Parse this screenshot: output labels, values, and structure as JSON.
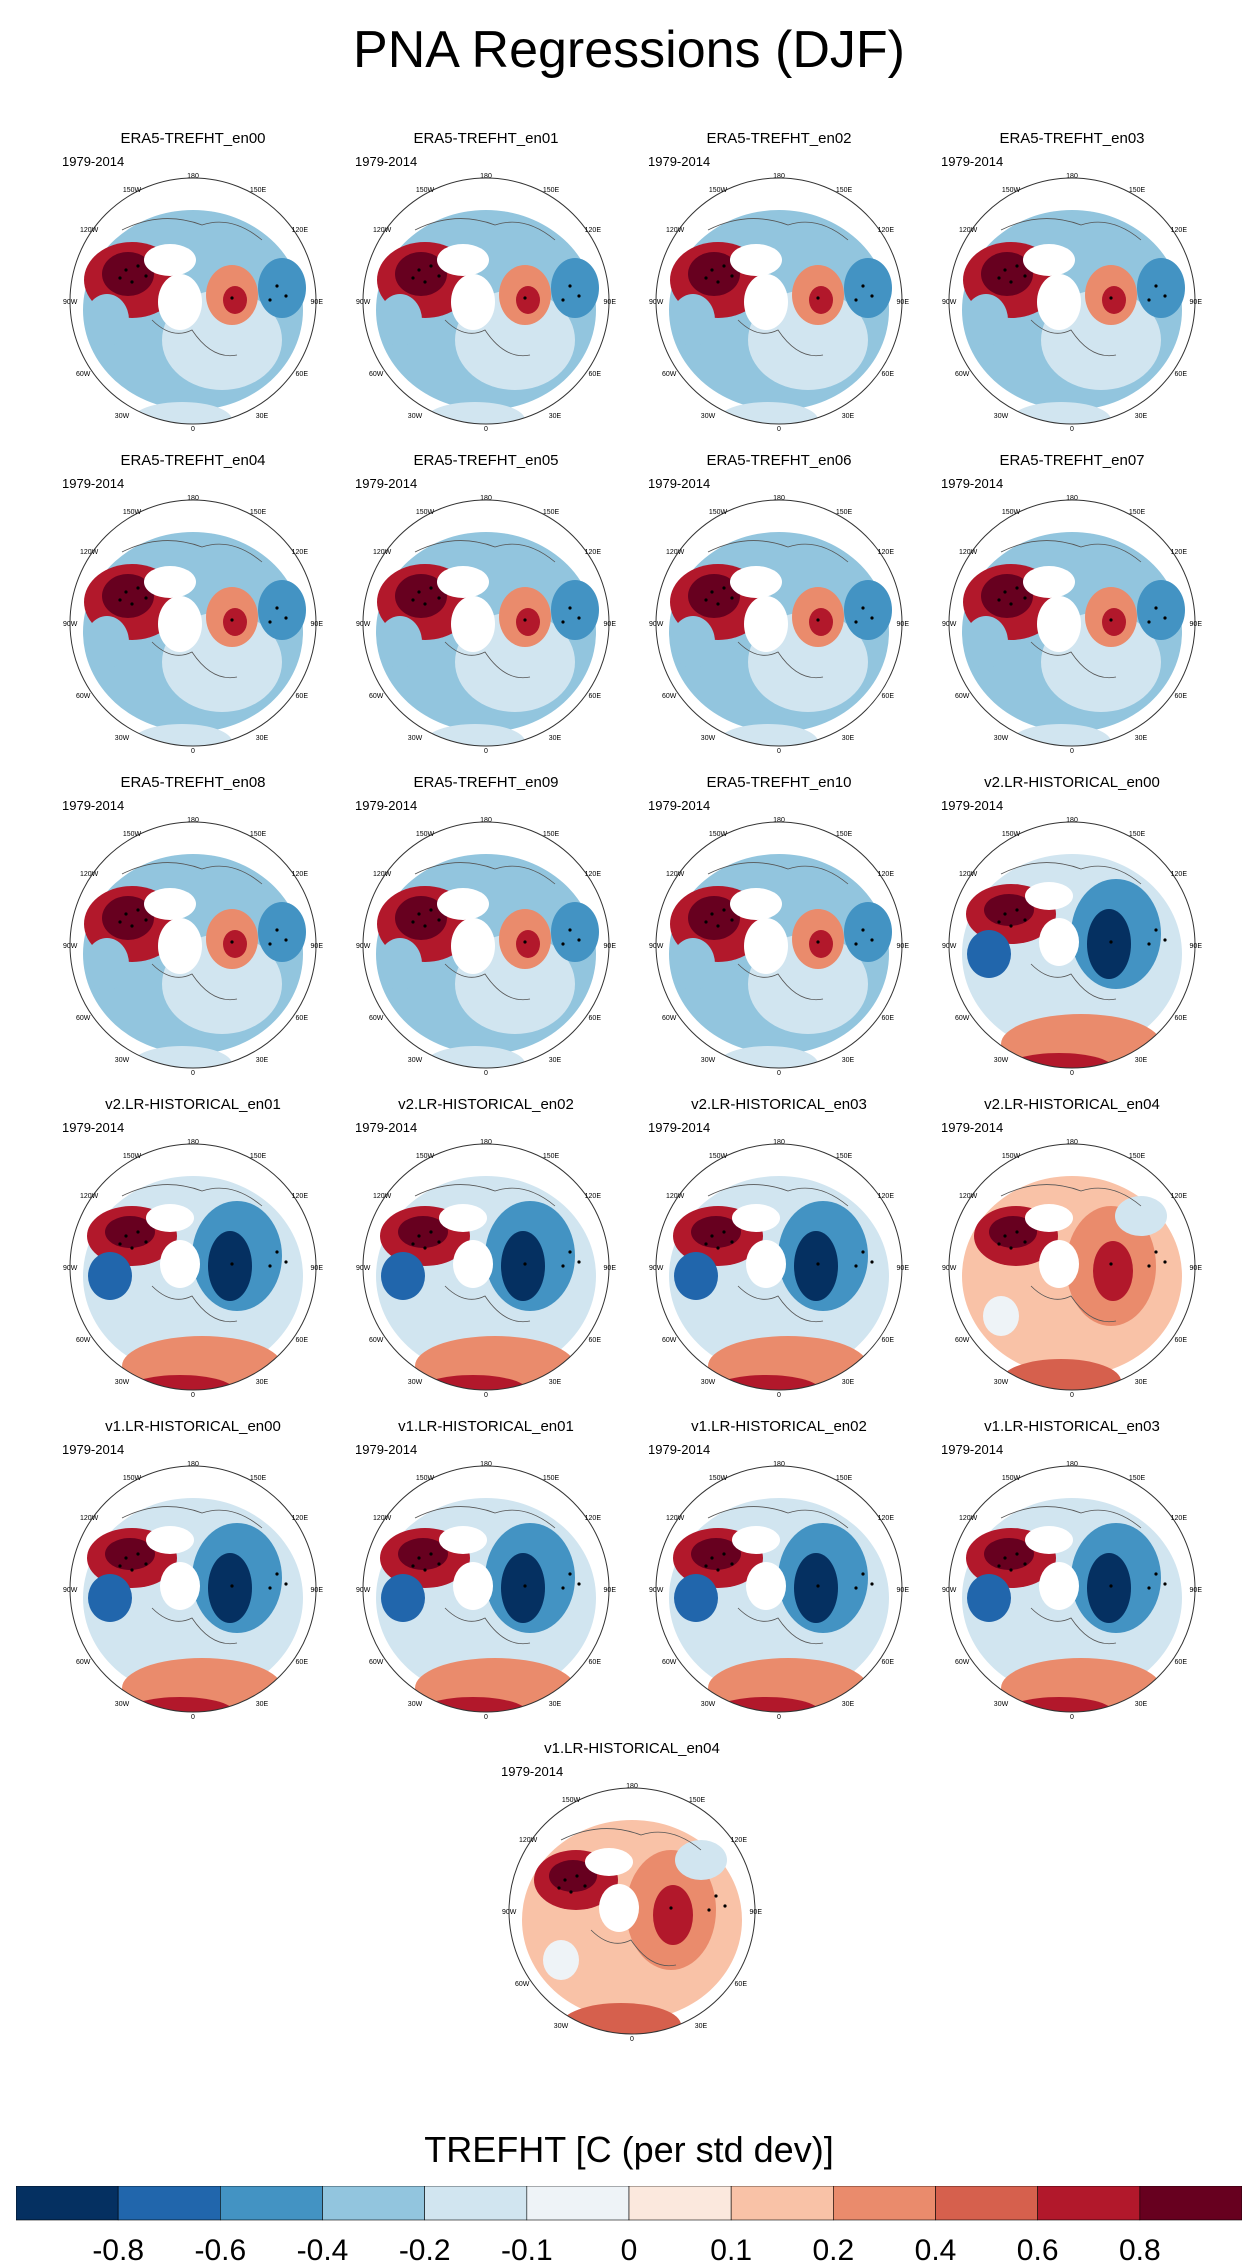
{
  "page": {
    "title": "PNA Regressions (DJF)"
  },
  "panels": [
    {
      "title": "ERA5-TREFHT_en00",
      "years": "1979-2014",
      "pattern": "era5"
    },
    {
      "title": "ERA5-TREFHT_en01",
      "years": "1979-2014",
      "pattern": "era5"
    },
    {
      "title": "ERA5-TREFHT_en02",
      "years": "1979-2014",
      "pattern": "era5"
    },
    {
      "title": "ERA5-TREFHT_en03",
      "years": "1979-2014",
      "pattern": "era5"
    },
    {
      "title": "ERA5-TREFHT_en04",
      "years": "1979-2014",
      "pattern": "era5"
    },
    {
      "title": "ERA5-TREFHT_en05",
      "years": "1979-2014",
      "pattern": "era5"
    },
    {
      "title": "ERA5-TREFHT_en06",
      "years": "1979-2014",
      "pattern": "era5"
    },
    {
      "title": "ERA5-TREFHT_en07",
      "years": "1979-2014",
      "pattern": "era5"
    },
    {
      "title": "ERA5-TREFHT_en08",
      "years": "1979-2014",
      "pattern": "era5"
    },
    {
      "title": "ERA5-TREFHT_en09",
      "years": "1979-2014",
      "pattern": "era5"
    },
    {
      "title": "ERA5-TREFHT_en10",
      "years": "1979-2014",
      "pattern": "era5"
    },
    {
      "title": "v2.LR-HISTORICAL_en00",
      "years": "1979-2014",
      "pattern": "model"
    },
    {
      "title": "v2.LR-HISTORICAL_en01",
      "years": "1979-2014",
      "pattern": "model"
    },
    {
      "title": "v2.LR-HISTORICAL_en02",
      "years": "1979-2014",
      "pattern": "model"
    },
    {
      "title": "v2.LR-HISTORICAL_en03",
      "years": "1979-2014",
      "pattern": "model"
    },
    {
      "title": "v2.LR-HISTORICAL_en04",
      "years": "1979-2014",
      "pattern": "model_warm"
    },
    {
      "title": "v1.LR-HISTORICAL_en00",
      "years": "1979-2014",
      "pattern": "model"
    },
    {
      "title": "v1.LR-HISTORICAL_en01",
      "years": "1979-2014",
      "pattern": "model"
    },
    {
      "title": "v1.LR-HISTORICAL_en02",
      "years": "1979-2014",
      "pattern": "model"
    },
    {
      "title": "v1.LR-HISTORICAL_en03",
      "years": "1979-2014",
      "pattern": "model"
    },
    {
      "title": "v1.LR-HISTORICAL_en04",
      "years": "1979-2014",
      "pattern": "model_warm"
    }
  ],
  "map_labels": {
    "top": "180",
    "bottom": "0",
    "left": "90W",
    "right": "90E",
    "upper_left_a": "150W",
    "upper_left_b": "120W",
    "upper_right_a": "150E",
    "upper_right_b": "120E",
    "lower_left_a": "60W",
    "lower_left_b": "30W",
    "lower_right_a": "60E",
    "lower_right_b": "30E"
  },
  "chart_data": {
    "type": "heatmap",
    "title": "PNA Regressions (DJF)",
    "colorbar": {
      "title": "TREFHT [C (per std dev)]",
      "levels": [
        -0.8,
        -0.6,
        -0.4,
        -0.2,
        -0.1,
        0,
        0.1,
        0.2,
        0.4,
        0.6,
        0.8
      ],
      "tick_labels": [
        "-0.8",
        "-0.6",
        "-0.4",
        "-0.2",
        "-0.1",
        "0",
        "0.1",
        "0.2",
        "0.4",
        "0.6",
        "0.8"
      ],
      "colors": [
        "#053061",
        "#2166ac",
        "#4393c3",
        "#92c5de",
        "#d1e5f0",
        "#eef3f7",
        "#fbe8dd",
        "#f9c2a7",
        "#ea8b6c",
        "#d6604d",
        "#b2182b",
        "#67001f"
      ]
    }
  }
}
